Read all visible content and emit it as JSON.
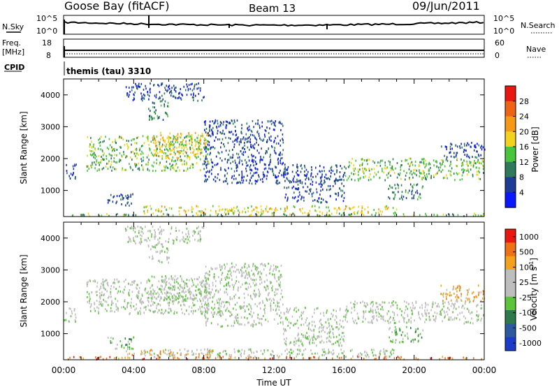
{
  "header": {
    "station": "Goose Bay (fitACF)",
    "beam": "Beam 13",
    "date": "09/Jun/2011"
  },
  "strip_panels": {
    "nsky_label": "N.Sky",
    "nsky_ticks": [
      "10^5",
      "10^0"
    ],
    "nsearch_label": "N.Search",
    "nsearch_ticks": [
      "10^5",
      "10^0"
    ],
    "freq_label_1": "Freq.",
    "freq_label_2": "[MHz]",
    "freq_ticks": [
      "18",
      "8"
    ],
    "nave_label": "Nave",
    "nave_ticks": [
      "60",
      "0"
    ],
    "cpid_label": "CPID",
    "cpid_value": "themis (tau) 3310"
  },
  "chart_data": [
    {
      "type": "heatmap",
      "title": "",
      "ylabel": "Slant Range [km]",
      "ylim": [
        180,
        4500
      ],
      "yticks": [
        "4000",
        "3000",
        "2000",
        "1000"
      ],
      "xlim_hours": [
        0,
        24
      ],
      "xticks": [
        "00:00",
        "04:00",
        "08:00",
        "12:00",
        "16:00",
        "20:00",
        "00:00"
      ],
      "colorbar_label": "Power [dB]",
      "colorbar_ticks": [
        "28",
        "24",
        "20",
        "16",
        "12",
        "8",
        "4"
      ],
      "colorbar_colors": [
        "#0a18ff",
        "#1e3c96",
        "#2e7a5a",
        "#49c43d",
        "#f2d21c",
        "#f59a16",
        "#ef6414",
        "#e8170f"
      ],
      "regions": [
        {
          "t0": 0.0,
          "t1": 0.7,
          "r0": 1350,
          "r1": 1800,
          "level": 1
        },
        {
          "t0": 1.3,
          "t1": 8.3,
          "r0": 1600,
          "r1": 2700,
          "level": 3
        },
        {
          "t0": 5.0,
          "t1": 8.3,
          "r0": 2000,
          "r1": 2800,
          "level": 4
        },
        {
          "t0": 4.8,
          "t1": 6.0,
          "r0": 3200,
          "r1": 3800,
          "level": 2
        },
        {
          "t0": 3.5,
          "t1": 8.0,
          "r0": 3800,
          "r1": 4350,
          "level": 1
        },
        {
          "t0": 8.0,
          "t1": 12.5,
          "r0": 1200,
          "r1": 3200,
          "level": 1
        },
        {
          "t0": 12.5,
          "t1": 16.0,
          "r0": 600,
          "r1": 1800,
          "level": 1
        },
        {
          "t0": 16.0,
          "t1": 24.0,
          "r0": 1300,
          "r1": 2000,
          "level": 3
        },
        {
          "t0": 18.5,
          "t1": 20.5,
          "r0": 700,
          "r1": 1200,
          "level": 2
        },
        {
          "t0": 21.5,
          "t1": 24.0,
          "r0": 2000,
          "r1": 2500,
          "level": 1
        },
        {
          "t0": 4.5,
          "t1": 19.0,
          "r0": 250,
          "r1": 500,
          "level": 4
        },
        {
          "t0": 2.5,
          "t1": 4.0,
          "r0": 500,
          "r1": 900,
          "level": 1
        },
        {
          "t0": 0.0,
          "t1": 24.0,
          "r0": 180,
          "r1": 260,
          "level": 3
        }
      ]
    },
    {
      "type": "heatmap",
      "title": "",
      "ylabel": "Slant Range [km]",
      "ylim": [
        180,
        4500
      ],
      "yticks": [
        "4000",
        "3000",
        "2000",
        "1000"
      ],
      "xlim_hours": [
        0,
        24
      ],
      "xticks": [
        "00:00",
        "04:00",
        "08:00",
        "12:00",
        "16:00",
        "20:00",
        "00:00"
      ],
      "xlabel": "Time UT",
      "colorbar_label": "Velocity [m s",
      "colorbar_label_sup": "-1",
      "colorbar_ticks": [
        "1000",
        "500",
        "100",
        "25",
        "-25",
        "-100",
        "-500",
        "-1000"
      ],
      "colorbar_colors": [
        "#1a3cc8",
        "#2b5aa0",
        "#2e7a4a",
        "#5cc43a",
        "#bebebe",
        "#bebebe",
        "#f2a21c",
        "#f07014",
        "#e8170f"
      ],
      "regions": [
        {
          "t0": 0.0,
          "t1": 0.7,
          "r0": 1350,
          "r1": 1800,
          "level": 4
        },
        {
          "t0": 1.3,
          "t1": 8.3,
          "r0": 1600,
          "r1": 2700,
          "level": 4
        },
        {
          "t0": 5.0,
          "t1": 8.3,
          "r0": 2000,
          "r1": 2800,
          "level": 4
        },
        {
          "t0": 4.8,
          "t1": 6.0,
          "r0": 3200,
          "r1": 3800,
          "level": 4
        },
        {
          "t0": 3.5,
          "t1": 8.0,
          "r0": 3800,
          "r1": 4350,
          "level": 4
        },
        {
          "t0": 8.0,
          "t1": 12.5,
          "r0": 1200,
          "r1": 3200,
          "level": 4
        },
        {
          "t0": 12.5,
          "t1": 16.0,
          "r0": 600,
          "r1": 1800,
          "level": 4
        },
        {
          "t0": 16.0,
          "t1": 24.0,
          "r0": 1300,
          "r1": 2000,
          "level": 4
        },
        {
          "t0": 18.5,
          "t1": 20.5,
          "r0": 700,
          "r1": 1200,
          "level": 3
        },
        {
          "t0": 21.5,
          "t1": 24.0,
          "r0": 2000,
          "r1": 2500,
          "level": 6
        },
        {
          "t0": 4.5,
          "t1": 19.0,
          "r0": 250,
          "r1": 500,
          "level": 4
        },
        {
          "t0": 3.5,
          "t1": 8.5,
          "r0": 300,
          "r1": 480,
          "level": 6
        },
        {
          "t0": 2.5,
          "t1": 4.0,
          "r0": 500,
          "r1": 900,
          "level": 3
        },
        {
          "t0": 0.0,
          "t1": 24.0,
          "r0": 180,
          "r1": 260,
          "level": 7
        }
      ]
    }
  ]
}
